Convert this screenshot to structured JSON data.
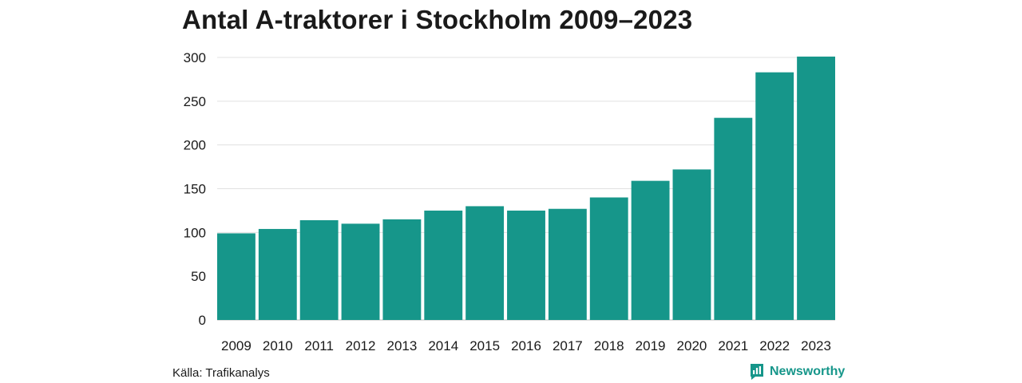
{
  "chart_data": {
    "type": "bar",
    "title": "Antal A-traktorer i Stockholm 2009–2023",
    "xlabel": "",
    "ylabel": "",
    "categories": [
      "2009",
      "2010",
      "2011",
      "2012",
      "2013",
      "2014",
      "2015",
      "2016",
      "2017",
      "2018",
      "2019",
      "2020",
      "2021",
      "2022",
      "2023"
    ],
    "values": [
      99,
      104,
      114,
      110,
      115,
      125,
      130,
      125,
      127,
      140,
      159,
      172,
      231,
      283,
      301
    ],
    "ylim": [
      0,
      300
    ],
    "yticks": [
      0,
      50,
      100,
      150,
      200,
      250,
      300
    ],
    "grid": true,
    "bar_color": "#16968a"
  },
  "source": "Källa: Trafikanalys",
  "brand": "Newsworthy"
}
